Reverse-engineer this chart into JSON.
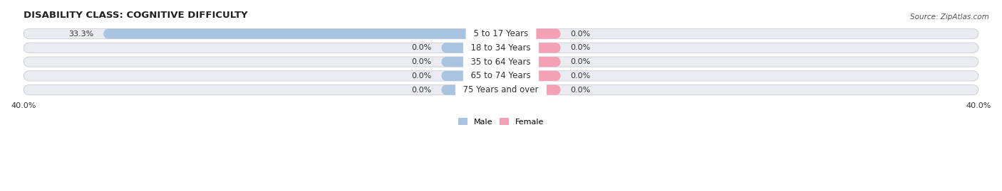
{
  "title": "DISABILITY CLASS: COGNITIVE DIFFICULTY",
  "source": "Source: ZipAtlas.com",
  "categories": [
    "5 to 17 Years",
    "18 to 34 Years",
    "35 to 64 Years",
    "65 to 74 Years",
    "75 Years and over"
  ],
  "male_values": [
    33.3,
    0.0,
    0.0,
    0.0,
    0.0
  ],
  "female_values": [
    0.0,
    0.0,
    0.0,
    0.0,
    0.0
  ],
  "male_color": "#a8c4e0",
  "female_color": "#f4a0b5",
  "bar_bg_color": "#ebebf2",
  "bar_border_color": "#d0d0de",
  "axis_limit": 40.0,
  "label_color": "#333333",
  "title_fontsize": 9.5,
  "tick_fontsize": 8,
  "category_fontsize": 8.5,
  "source_fontsize": 7.5,
  "small_bar_width": 5.0
}
